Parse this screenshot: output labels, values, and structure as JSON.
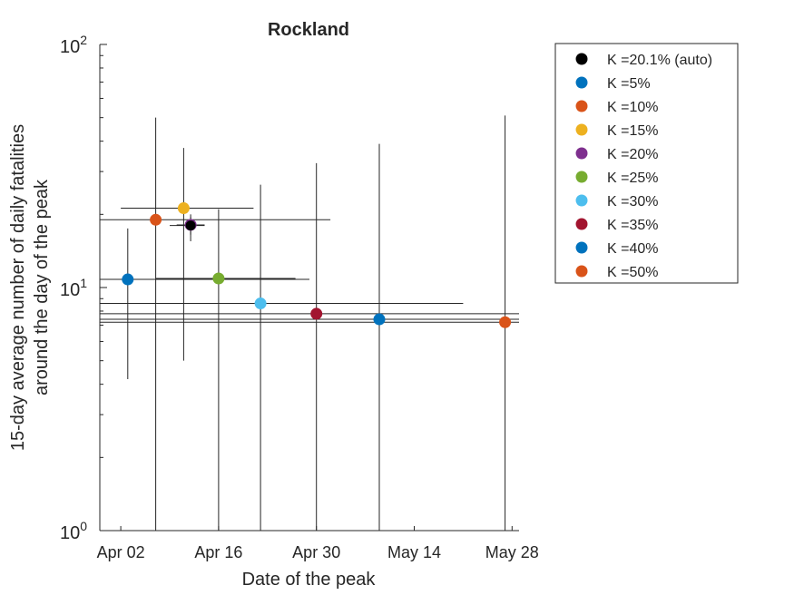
{
  "chart_data": {
    "type": "scatter",
    "title": "Rockland",
    "xlabel": "Date of the peak",
    "ylabel_lines": [
      "15-day average number of daily fatalities",
      "around the day of the peak"
    ],
    "y_scale": "log",
    "ylim": [
      1,
      100
    ],
    "xlim": [
      "2020-03-30",
      "2020-05-29"
    ],
    "x_ticks": [
      "Apr 02",
      "Apr 16",
      "Apr 30",
      "May 14",
      "May 28"
    ],
    "x_tick_dates": [
      "2020-04-02",
      "2020-04-16",
      "2020-04-30",
      "2020-05-14",
      "2020-05-28"
    ],
    "y_ticks": [
      {
        "value": 1,
        "base": "10",
        "exp": "0"
      },
      {
        "value": 10,
        "base": "10",
        "exp": "1"
      },
      {
        "value": 100,
        "base": "10",
        "exp": "2"
      }
    ],
    "grid": false,
    "legend_position": "outside-right",
    "series": [
      {
        "name": "K =20.1% (auto)",
        "color": "#000000",
        "x": "2020-04-12",
        "y": 18,
        "x_err": [
          "2020-04-09",
          "2020-04-14"
        ],
        "y_err": [
          15.5,
          19.5
        ]
      },
      {
        "name": "K =5%",
        "color": "#0072BD",
        "x": "2020-04-03",
        "y": 10.8,
        "x_err": [
          "2020-03-30",
          "2020-04-29"
        ],
        "y_err": [
          4.2,
          17.5
        ]
      },
      {
        "name": "K =10%",
        "color": "#D95319",
        "x": "2020-04-07",
        "y": 19,
        "x_err": [
          "2020-03-30",
          "2020-05-02"
        ],
        "y_err": [
          1,
          50
        ]
      },
      {
        "name": "K =15%",
        "color": "#EDB120",
        "x": "2020-04-11",
        "y": 21.2,
        "x_err": [
          "2020-04-02",
          "2020-04-21"
        ],
        "y_err": [
          5.0,
          37.5
        ]
      },
      {
        "name": "K =20%",
        "color": "#7E2F8E",
        "x": "2020-04-12",
        "y": 18.1,
        "x_err": [
          "2020-04-10",
          "2020-04-14"
        ],
        "y_err": [
          16.5,
          20
        ]
      },
      {
        "name": "K =25%",
        "color": "#77AC30",
        "x": "2020-04-16",
        "y": 10.9,
        "x_err": [
          "2020-04-07",
          "2020-04-27"
        ],
        "y_err": [
          1,
          21
        ]
      },
      {
        "name": "K =30%",
        "color": "#4DBEEE",
        "x": "2020-04-22",
        "y": 8.6,
        "x_err": [
          "2020-03-30",
          "2020-05-21"
        ],
        "y_err": [
          1,
          26.5
        ]
      },
      {
        "name": "K =35%",
        "color": "#A2142F",
        "x": "2020-04-30",
        "y": 7.8,
        "x_err": [
          "2020-03-30",
          "2020-05-29"
        ],
        "y_err": [
          1,
          32.5
        ]
      },
      {
        "name": "K =40%",
        "color": "#0072BD",
        "x": "2020-05-09",
        "y": 7.4,
        "x_err": [
          "2020-03-30",
          "2020-05-29"
        ],
        "y_err": [
          1,
          39
        ]
      },
      {
        "name": "K =50%",
        "color": "#D95319",
        "x": "2020-05-27",
        "y": 7.2,
        "x_err": [
          "2020-03-30",
          "2020-05-29"
        ],
        "y_err": [
          1,
          51
        ]
      }
    ]
  }
}
